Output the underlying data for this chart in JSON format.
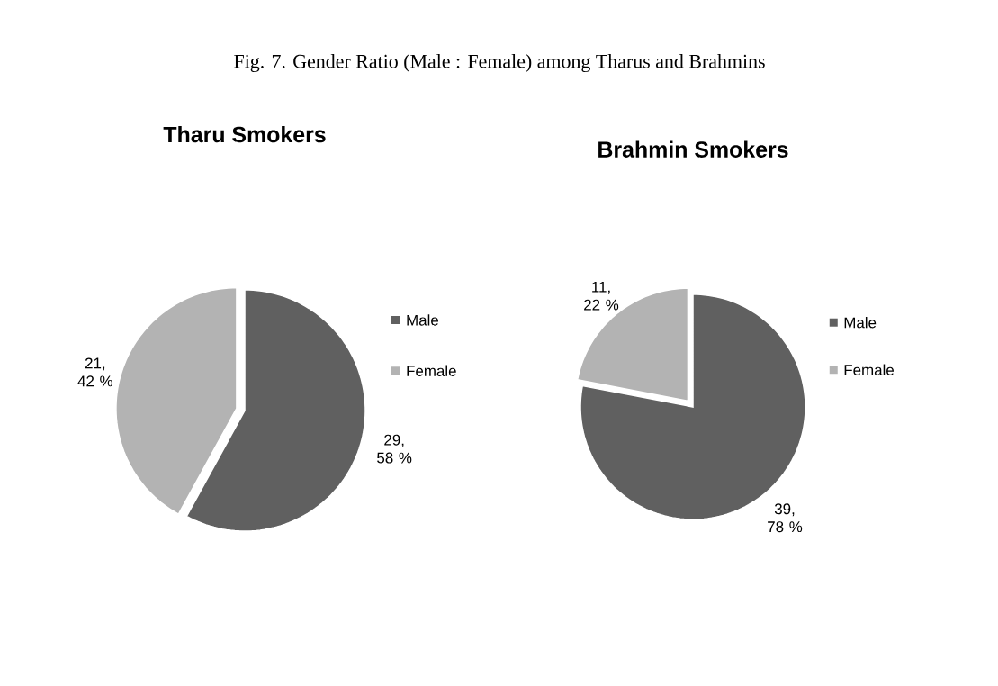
{
  "chart_data": [
    {
      "type": "pie",
      "title": "Tharu Smokers",
      "annotations": [
        "Fig. 7.   Gender Ratio (Male : Female) among Tharus and Brahmins"
      ],
      "categories": [
        "Male",
        "Female"
      ],
      "values": [
        29,
        21
      ],
      "colors": [
        "#606060",
        "#b3b3b3"
      ],
      "value_labels": [
        "29, 58 %",
        "21, 42 %"
      ],
      "legend": "right"
    },
    {
      "type": "pie",
      "title": "Brahmin Smokers",
      "categories": [
        "Male",
        "Female"
      ],
      "values": [
        39,
        11
      ],
      "colors": [
        "#606060",
        "#b3b3b3"
      ],
      "value_labels": [
        "39, 78 %",
        "11, 22 %"
      ],
      "legend": "right"
    }
  ]
}
